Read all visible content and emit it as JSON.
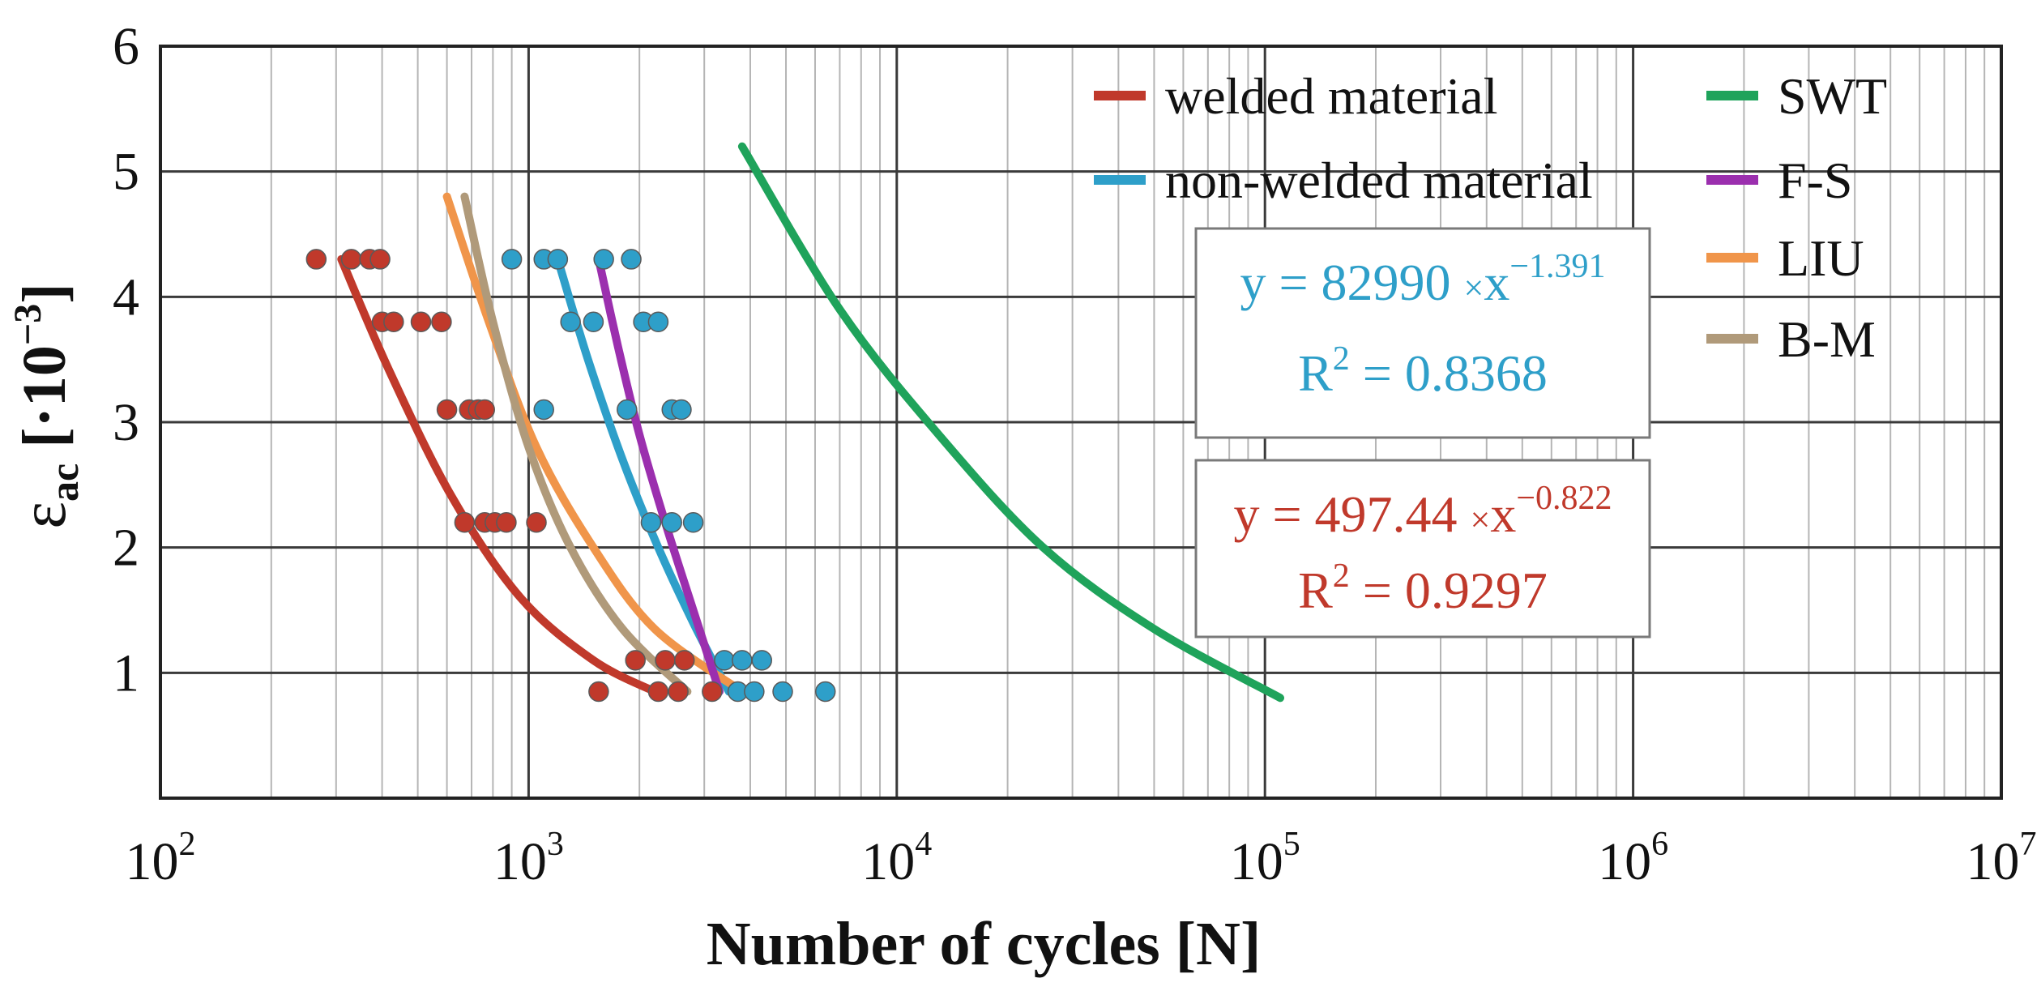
{
  "chart_data": {
    "type": "scatter",
    "xscale": "log",
    "xlim": [
      100,
      10000000
    ],
    "ylim": [
      0,
      6
    ],
    "grid": true,
    "xlabel": "Number of cycles [N]",
    "ylabel": {
      "symbol": "ε",
      "subscript": "ac",
      "unit": "[·10",
      "exponent": "−3",
      "close": "]"
    },
    "x_ticks": [
      {
        "base": "10",
        "exp": "2",
        "value": 100
      },
      {
        "base": "10",
        "exp": "3",
        "value": 1000
      },
      {
        "base": "10",
        "exp": "4",
        "value": 10000
      },
      {
        "base": "10",
        "exp": "5",
        "value": 100000
      },
      {
        "base": "10",
        "exp": "6",
        "value": 1000000
      },
      {
        "base": "10",
        "exp": "7",
        "value": 10000000
      }
    ],
    "y_ticks": [
      {
        "label": "1",
        "value": 1
      },
      {
        "label": "2",
        "value": 2
      },
      {
        "label": "3",
        "value": 3
      },
      {
        "label": "4",
        "value": 4
      },
      {
        "label": "5",
        "value": 5
      },
      {
        "label": "6",
        "value": 6
      }
    ],
    "scatter_series": [
      {
        "name": "welded material",
        "color": "#c0392b",
        "points": [
          [
            265,
            4.3
          ],
          [
            330,
            4.3
          ],
          [
            370,
            4.3
          ],
          [
            395,
            4.3
          ],
          [
            400,
            3.8
          ],
          [
            430,
            3.8
          ],
          [
            510,
            3.8
          ],
          [
            580,
            3.8
          ],
          [
            600,
            3.1
          ],
          [
            690,
            3.1
          ],
          [
            730,
            3.1
          ],
          [
            760,
            3.1
          ],
          [
            670,
            2.2
          ],
          [
            760,
            2.2
          ],
          [
            810,
            2.2
          ],
          [
            870,
            2.2
          ],
          [
            1050,
            2.2
          ],
          [
            1950,
            1.1
          ],
          [
            2350,
            1.1
          ],
          [
            2650,
            1.1
          ],
          [
            1550,
            0.85
          ],
          [
            2250,
            0.85
          ],
          [
            2550,
            0.85
          ],
          [
            3150,
            0.85
          ]
        ]
      },
      {
        "name": "non-welded material",
        "color": "#2e9fc9",
        "points": [
          [
            900,
            4.3
          ],
          [
            1100,
            4.3
          ],
          [
            1200,
            4.3
          ],
          [
            1600,
            4.3
          ],
          [
            1900,
            4.3
          ],
          [
            1300,
            3.8
          ],
          [
            1500,
            3.8
          ],
          [
            2050,
            3.8
          ],
          [
            2250,
            3.8
          ],
          [
            1100,
            3.1
          ],
          [
            1850,
            3.1
          ],
          [
            2450,
            3.1
          ],
          [
            2600,
            3.1
          ],
          [
            2150,
            2.2
          ],
          [
            2450,
            2.2
          ],
          [
            2800,
            2.2
          ],
          [
            3400,
            1.1
          ],
          [
            3800,
            1.1
          ],
          [
            4300,
            1.1
          ],
          [
            3700,
            0.85
          ],
          [
            4100,
            0.85
          ],
          [
            4900,
            0.85
          ],
          [
            6400,
            0.85
          ]
        ]
      }
    ],
    "curves": [
      {
        "name": "welded material",
        "color": "#c0392b",
        "points": [
          [
            310,
            4.3
          ],
          [
            420,
            3.4
          ],
          [
            620,
            2.4
          ],
          [
            950,
            1.6
          ],
          [
            1500,
            1.1
          ],
          [
            2200,
            0.85
          ]
        ]
      },
      {
        "name": "non-welded material",
        "color": "#2e9fc9",
        "points": [
          [
            1200,
            4.3
          ],
          [
            1450,
            3.5
          ],
          [
            1800,
            2.7
          ],
          [
            2250,
            2.0
          ],
          [
            2800,
            1.4
          ],
          [
            3500,
            0.85
          ]
        ]
      },
      {
        "name": "SWT",
        "color": "#1fa35b",
        "points": [
          [
            3800,
            5.2
          ],
          [
            7000,
            3.9
          ],
          [
            13000,
            2.9
          ],
          [
            25000,
            2.0
          ],
          [
            50000,
            1.35
          ],
          [
            110000,
            0.8
          ]
        ]
      },
      {
        "name": "F-S",
        "color": "#9b2fae",
        "points": [
          [
            1550,
            4.3
          ],
          [
            1750,
            3.6
          ],
          [
            2000,
            2.9
          ],
          [
            2350,
            2.2
          ],
          [
            2800,
            1.5
          ],
          [
            3300,
            0.85
          ]
        ]
      },
      {
        "name": "LIU",
        "color": "#f0954a",
        "points": [
          [
            600,
            4.8
          ],
          [
            780,
            3.8
          ],
          [
            1050,
            2.8
          ],
          [
            1500,
            2.0
          ],
          [
            2200,
            1.35
          ],
          [
            3800,
            0.85
          ]
        ]
      },
      {
        "name": "B-M",
        "color": "#b09a7a",
        "points": [
          [
            670,
            4.8
          ],
          [
            800,
            3.8
          ],
          [
            1000,
            2.8
          ],
          [
            1300,
            2.0
          ],
          [
            1800,
            1.35
          ],
          [
            2700,
            0.85
          ]
        ]
      }
    ],
    "legend": {
      "placement": "top-right",
      "items": [
        {
          "label": "welded material",
          "color": "#c0392b"
        },
        {
          "label": "non-welded material",
          "color": "#2e9fc9"
        },
        {
          "label": "SWT",
          "color": "#1fa35b"
        },
        {
          "label": "F-S",
          "color": "#9b2fae"
        },
        {
          "label": "LIU",
          "color": "#f0954a"
        },
        {
          "label": "B-M",
          "color": "#b09a7a"
        }
      ]
    },
    "annotations": [
      {
        "name": "non-welded-fit",
        "color": "#2e9fc9",
        "eq_prefix": "y = 82990 ",
        "times": "×",
        "eq_x": "x",
        "eq_exp": "−1.391",
        "r2_prefix": "R",
        "r2_sup": "2",
        "r2_value": " = 0.8368"
      },
      {
        "name": "welded-fit",
        "color": "#c0392b",
        "eq_prefix": "y = 497.44 ",
        "times": "×",
        "eq_x": "x",
        "eq_exp": "−0.822",
        "r2_prefix": "R",
        "r2_sup": "2",
        "r2_value": " = 0.9297"
      }
    ]
  }
}
